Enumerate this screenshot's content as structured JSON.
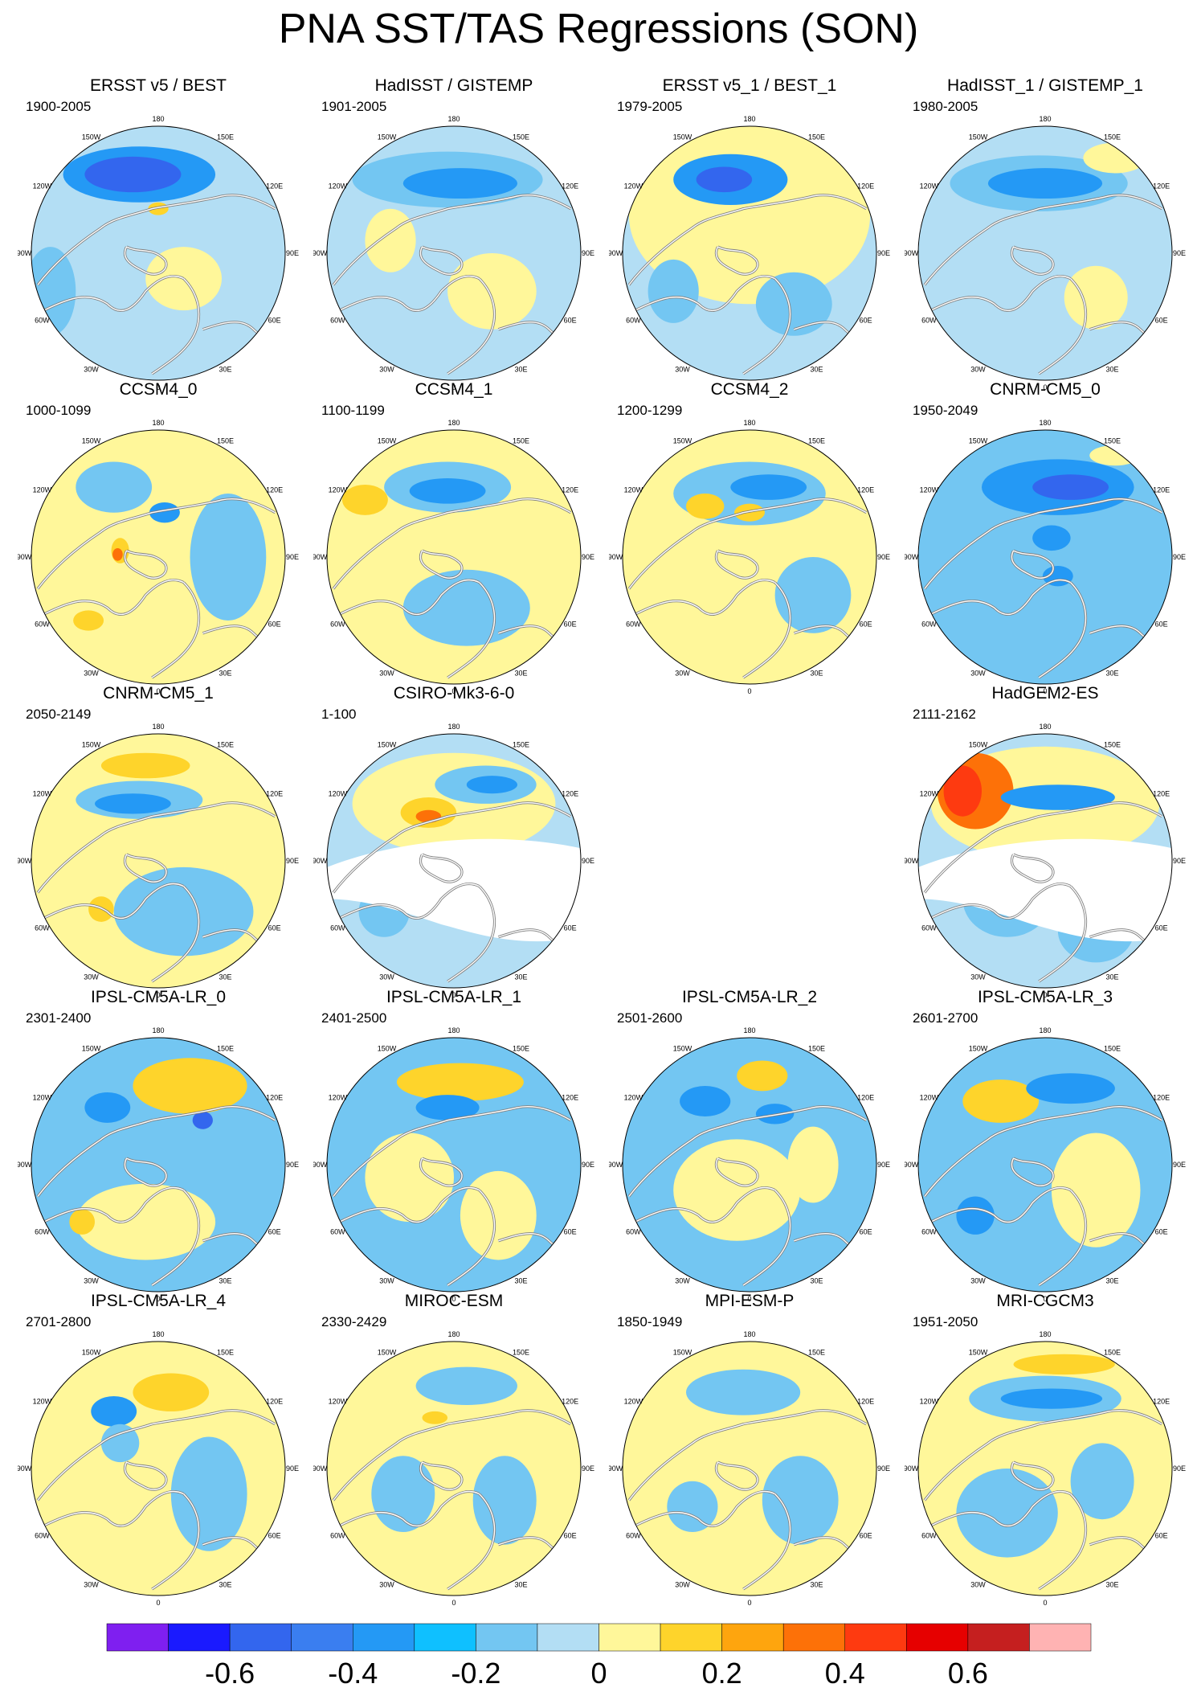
{
  "title": "PNA SST/TAS Regressions (SON)",
  "colors": {
    "purple": "#7f1ff0",
    "blue_dark": "#1a1aff",
    "blue": "#3366ee",
    "blue_mid": "#3a7ef0",
    "blue_light": "#2499f5",
    "cyan": "#0fc0ff",
    "sky": "#73c6f2",
    "pale_blue": "#b3def4",
    "pale_yellow": "#fff79a",
    "yellow": "#fed42b",
    "orange_light": "#fea50e",
    "orange": "#fd7108",
    "red_orange": "#fe3a10",
    "red": "#e60000",
    "dark_red": "#c51f1f",
    "pink": "#ffb3b3",
    "coast": "#ffffff",
    "land_outline": "#808080"
  },
  "panels": [
    {
      "title": "ERSST v5 / BEST",
      "years": "1900-2005",
      "land_blank": false,
      "pattern": "obs1"
    },
    {
      "title": "HadISST / GISTEMP",
      "years": "1901-2005",
      "land_blank": false,
      "pattern": "obs2"
    },
    {
      "title": "ERSST v5_1 / BEST_1",
      "years": "1979-2005",
      "land_blank": false,
      "pattern": "obs3"
    },
    {
      "title": "HadISST_1 / GISTEMP_1",
      "years": "1980-2005",
      "land_blank": false,
      "pattern": "obs4"
    },
    {
      "title": "CCSM4_0",
      "years": "1000-1099",
      "land_blank": false,
      "pattern": "m1"
    },
    {
      "title": "CCSM4_1",
      "years": "1100-1199",
      "land_blank": false,
      "pattern": "m2"
    },
    {
      "title": "CCSM4_2",
      "years": "1200-1299",
      "land_blank": false,
      "pattern": "m3"
    },
    {
      "title": "CNRM-CM5_0",
      "years": "1950-2049",
      "land_blank": false,
      "pattern": "m4"
    },
    {
      "title": "CNRM-CM5_1",
      "years": "2050-2149",
      "land_blank": false,
      "pattern": "m5"
    },
    {
      "title": "CSIRO-Mk3-6-0",
      "years": "1-100",
      "land_blank": true,
      "pattern": "m6"
    },
    null,
    {
      "title": "HadGEM2-ES",
      "years": "2111-2162",
      "land_blank": true,
      "pattern": "m7"
    },
    {
      "title": "IPSL-CM5A-LR_0",
      "years": "2301-2400",
      "land_blank": false,
      "pattern": "m8"
    },
    {
      "title": "IPSL-CM5A-LR_1",
      "years": "2401-2500",
      "land_blank": false,
      "pattern": "m9"
    },
    {
      "title": "IPSL-CM5A-LR_2",
      "years": "2501-2600",
      "land_blank": false,
      "pattern": "m10"
    },
    {
      "title": "IPSL-CM5A-LR_3",
      "years": "2601-2700",
      "land_blank": false,
      "pattern": "m11"
    },
    {
      "title": "IPSL-CM5A-LR_4",
      "years": "2701-2800",
      "land_blank": false,
      "pattern": "m12"
    },
    {
      "title": "MIROC-ESM",
      "years": "2330-2429",
      "land_blank": false,
      "pattern": "m13"
    },
    {
      "title": "MPI-ESM-P",
      "years": "1850-1949",
      "land_blank": false,
      "pattern": "m14"
    },
    {
      "title": "MRI-CGCM3",
      "years": "1951-2050",
      "land_blank": false,
      "pattern": "m15"
    }
  ],
  "longitude_labels": [
    "180",
    "150E",
    "120E",
    "90E",
    "60E",
    "30E",
    "0",
    "30W",
    "60W",
    "90W",
    "120W",
    "150W"
  ],
  "colorbar": {
    "colors": [
      "#7f1ff0",
      "#1a1aff",
      "#3366ee",
      "#3a7ef0",
      "#2499f5",
      "#0fc0ff",
      "#73c6f2",
      "#b3def4",
      "#fff79a",
      "#fed42b",
      "#fea50e",
      "#fd7108",
      "#fe3a10",
      "#e60000",
      "#c51f1f",
      "#ffb3b3"
    ],
    "tick_labels": [
      "-0.6",
      "-0.4",
      "-0.2",
      "0",
      "0.2",
      "0.4",
      "0.6"
    ],
    "tick_values": [
      -0.6,
      -0.4,
      -0.2,
      0,
      0.2,
      0.4,
      0.6
    ],
    "min": -0.8,
    "max": 0.8
  }
}
